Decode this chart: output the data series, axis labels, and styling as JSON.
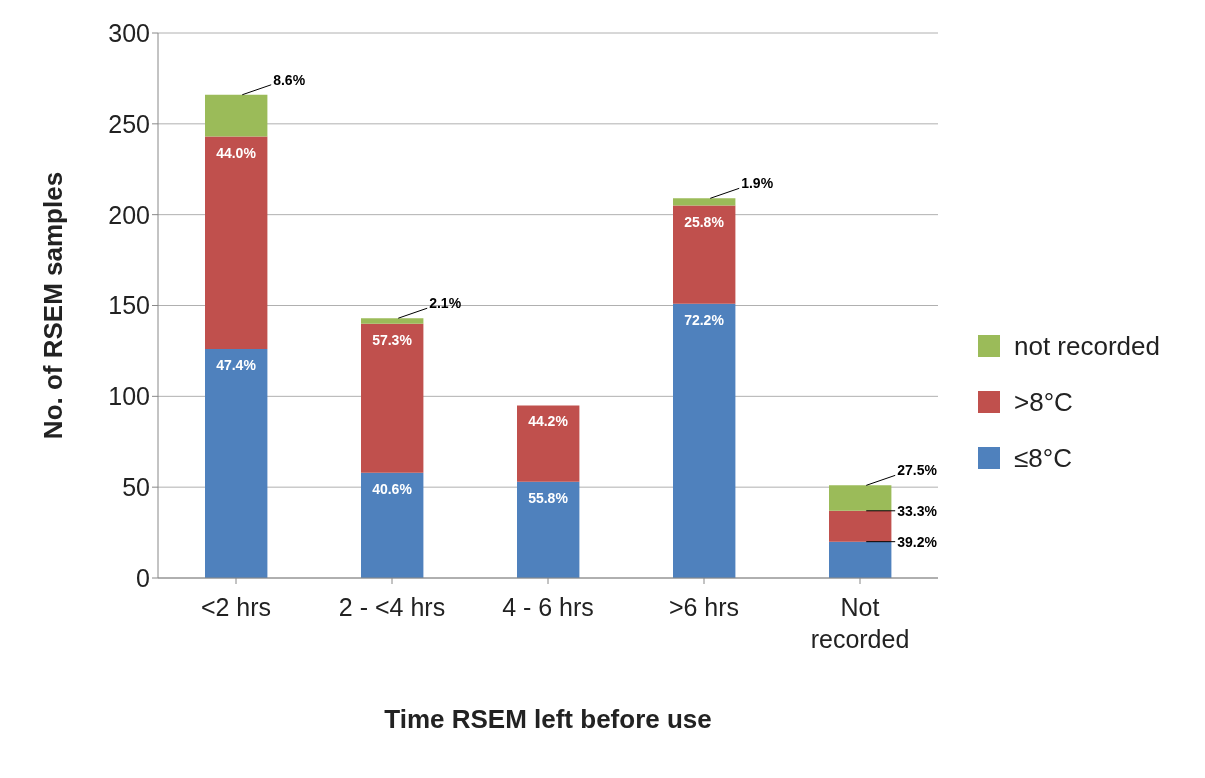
{
  "chart_data": {
    "type": "bar",
    "stacked": true,
    "xlabel": "Time RSEM left before use",
    "ylabel": "No. of RSEM samples",
    "categories": [
      "<2 hrs",
      "2 - <4 hrs",
      "4 - 6 hrs",
      ">6 hrs",
      "Not recorded"
    ],
    "series": [
      {
        "name": "≤8°C",
        "color": "#4f81bd",
        "values": [
          126,
          58,
          53,
          151,
          20
        ]
      },
      {
        "name": ">8°C",
        "color": "#c0504d",
        "values": [
          117,
          82,
          42,
          54,
          17
        ]
      },
      {
        "name": "not recorded",
        "color": "#9bbb59",
        "values": [
          23,
          3,
          null,
          4,
          14
        ]
      }
    ],
    "annotations": [
      {
        "text": "47.4%",
        "x": "<2 hrs",
        "y": 126
      },
      {
        "text": "44.0%",
        "x": "<2 hrs",
        "y": 243
      },
      {
        "text": "8.6%",
        "x": "<2 hrs",
        "y": 266
      },
      {
        "text": "40.6%",
        "x": "2 - <4 hrs",
        "y": 58
      },
      {
        "text": "57.3%",
        "x": "2 - <4 hrs",
        "y": 140
      },
      {
        "text": "2.1%",
        "x": "2 - <4 hrs",
        "y": 143
      },
      {
        "text": "55.8%",
        "x": "4 - 6 hrs",
        "y": 53
      },
      {
        "text": "44.2%",
        "x": "4 - 6 hrs",
        "y": 95
      },
      {
        "text": "72.2%",
        "x": ">6 hrs",
        "y": 151
      },
      {
        "text": "25.8%",
        "x": ">6 hrs",
        "y": 205
      },
      {
        "text": "1.9%",
        "x": ">6 hrs",
        "y": 209
      },
      {
        "text": "39.2%",
        "x": "Not recorded",
        "y": 20
      },
      {
        "text": "33.3%",
        "x": "Not recorded",
        "y": 37
      },
      {
        "text": "27.5%",
        "x": "Not recorded",
        "y": 51
      }
    ],
    "ylim": [
      0,
      300
    ],
    "yticks": [
      0,
      50,
      100,
      150,
      200,
      250,
      300
    ],
    "grid": "y",
    "legend": "right"
  }
}
